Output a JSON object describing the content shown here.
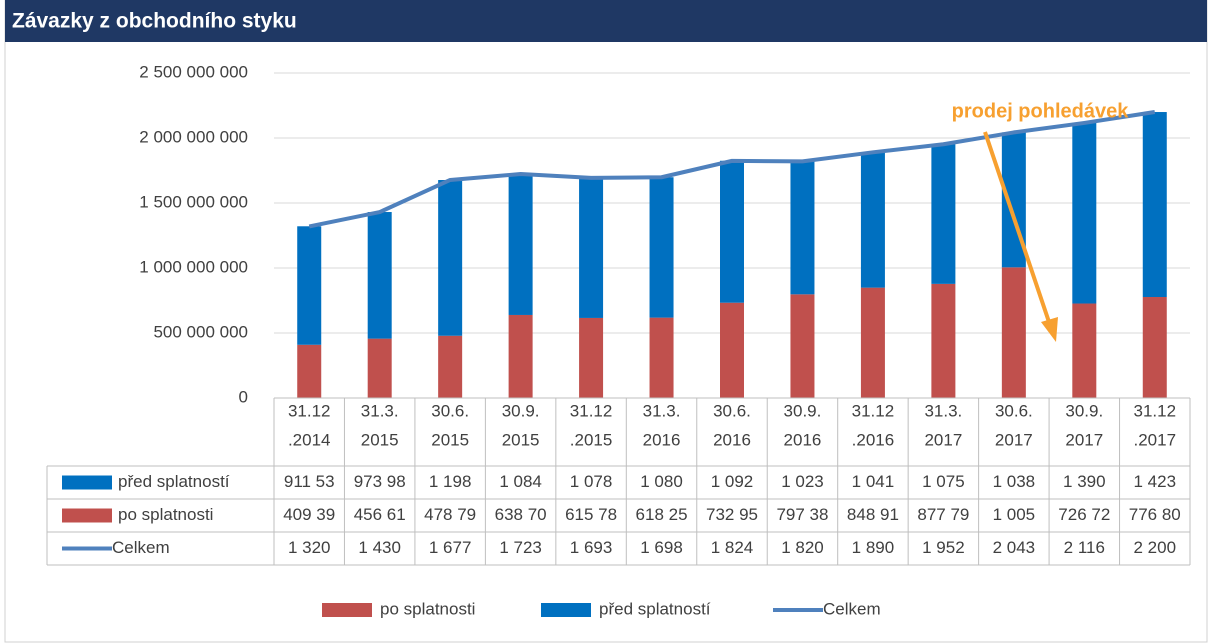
{
  "chart_data": {
    "type": "bar",
    "stacked": true,
    "title": "Závazky z obchodního styku",
    "categories": [
      [
        "31.12",
        ".2014"
      ],
      [
        "31.3.",
        "2015"
      ],
      [
        "30.6.",
        "2015"
      ],
      [
        "30.9.",
        "2015"
      ],
      [
        "31.12",
        ".2015"
      ],
      [
        "31.3.",
        "2016"
      ],
      [
        "30.6.",
        "2016"
      ],
      [
        "30.9.",
        "2016"
      ],
      [
        "31.12",
        ".2016"
      ],
      [
        "31.3.",
        "2017"
      ],
      [
        "30.6.",
        "2017"
      ],
      [
        "30.9.",
        "2017"
      ],
      [
        "31.12",
        ".2017"
      ]
    ],
    "series": [
      {
        "name": "před splatností",
        "type": "bar",
        "color": "#0070c0",
        "values": [
          911530000,
          973980000,
          1198000000,
          1084000000,
          1078000000,
          1080000000,
          1092000000,
          1023000000,
          1041000000,
          1075000000,
          1038000000,
          1390000000,
          1423000000
        ],
        "value_labels": [
          "911 53",
          "973 98",
          "1 198",
          "1 084",
          "1 078",
          "1 080",
          "1 092",
          "1 023",
          "1 041",
          "1 075",
          "1 038",
          "1 390",
          "1 423"
        ]
      },
      {
        "name": "po splatnosti",
        "type": "bar",
        "color": "#c0504d",
        "values": [
          409390000,
          456610000,
          478790000,
          638700000,
          615780000,
          618250000,
          732950000,
          797380000,
          848910000,
          877790000,
          1005000000,
          726720000,
          776800000
        ],
        "value_labels": [
          "409 39",
          "456 61",
          "478 79",
          "638 70",
          "615 78",
          "618 25",
          "732 95",
          "797 38",
          "848 91",
          "877 79",
          "1 005",
          "726 72",
          "776 80"
        ]
      },
      {
        "name": "Celkem",
        "type": "line",
        "color": "#4f81bd",
        "values": [
          1320000000,
          1430000000,
          1677000000,
          1723000000,
          1693000000,
          1698000000,
          1824000000,
          1820000000,
          1890000000,
          1952000000,
          2043000000,
          2116000000,
          2200000000
        ],
        "value_labels": [
          "1 320",
          "1 430",
          "1 677",
          "1 723",
          "1 693",
          "1 698",
          "1 824",
          "1 820",
          "1 890",
          "1 952",
          "2 043",
          "2 116",
          "2 200"
        ]
      }
    ],
    "ylim": [
      0,
      2500000000
    ],
    "yticks": [
      0,
      {
        "value": 500000000,
        "label": "500 000 000"
      },
      {
        "value": 1000000000,
        "label": "1 000 000 000"
      },
      {
        "value": 1500000000,
        "label": "1 500 000 000"
      },
      {
        "value": 2000000000,
        "label": "2 000 000 000"
      },
      {
        "value": 2500000000,
        "label": "2 500 000 000"
      }
    ],
    "grid": true,
    "legend": "bottom",
    "annotation": "prodej pohledávek"
  }
}
